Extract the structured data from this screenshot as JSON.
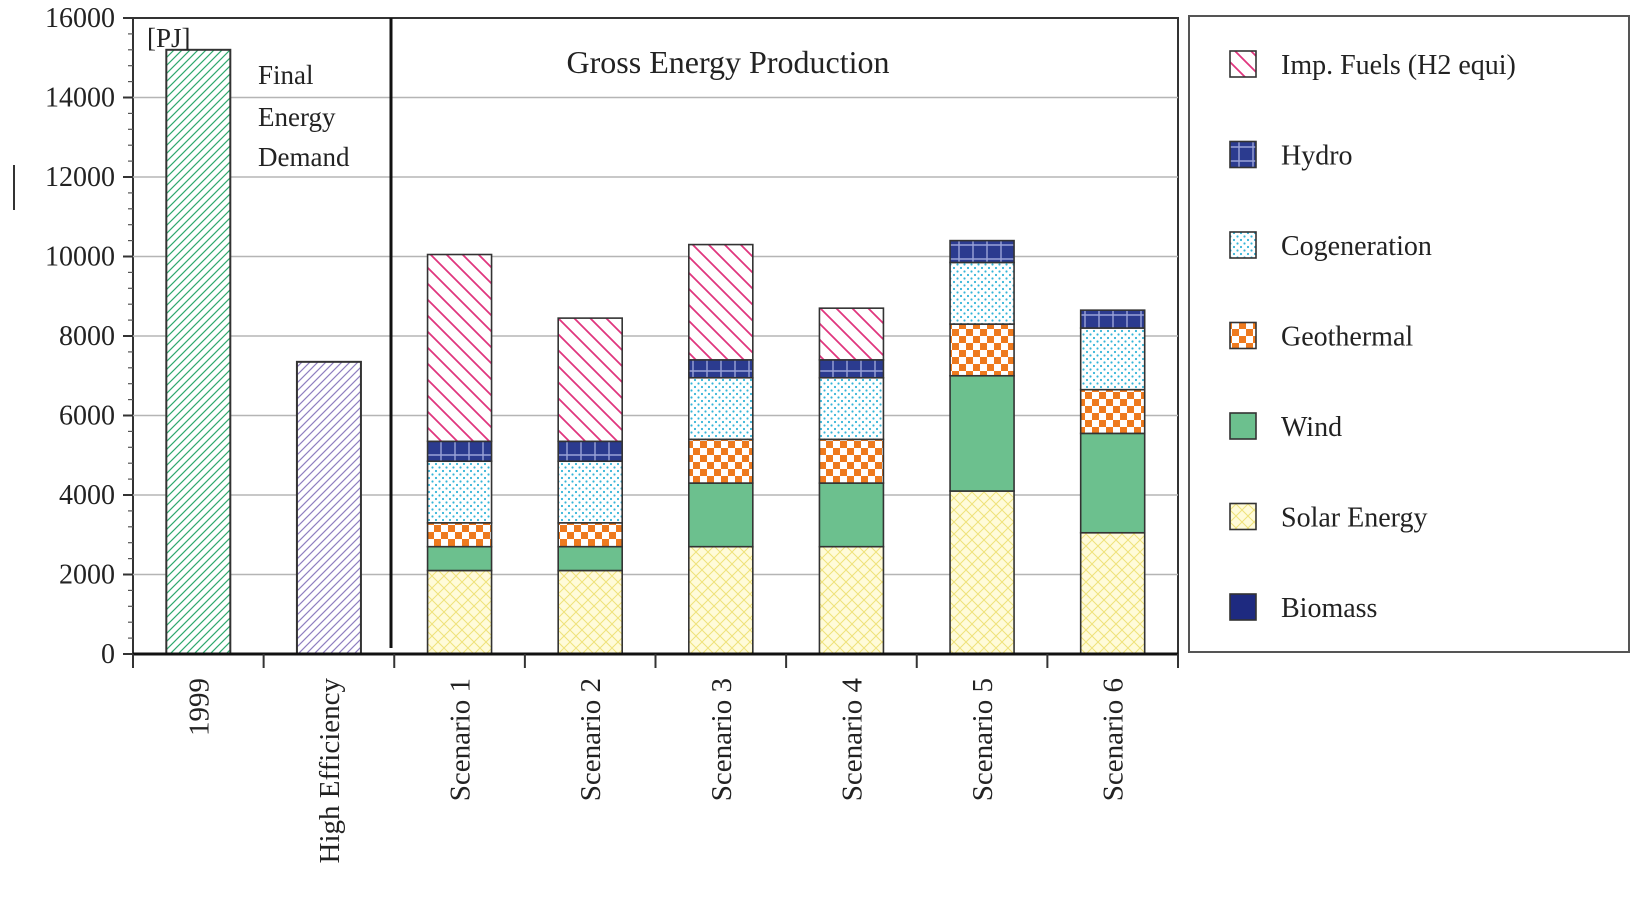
{
  "chart_data": {
    "type": "bar",
    "stacked": true,
    "unit": "[PJ]",
    "title": "Gross Energy Production",
    "annotation": [
      "Final",
      "Energy",
      "Demand"
    ],
    "ylim": [
      0,
      16000
    ],
    "yticks": [
      0,
      2000,
      4000,
      6000,
      8000,
      10000,
      12000,
      14000,
      16000
    ],
    "grid": true,
    "legend_position": "right",
    "categories": [
      "1999",
      "High Efficiency",
      "Scenario 1",
      "Scenario 2",
      "Scenario 3",
      "Scenario 4",
      "Scenario 5",
      "Scenario 6"
    ],
    "demand": [
      {
        "category": "1999",
        "value": 15200,
        "color": "#2fa86e"
      },
      {
        "category": "High Efficiency",
        "value": 7350,
        "color": "#8f7fc0"
      }
    ],
    "series": [
      {
        "name": "Biomass",
        "values": [
          0,
          0,
          0,
          0,
          0,
          0,
          0,
          0
        ],
        "color": "#1e2a80",
        "pattern": "solid"
      },
      {
        "name": "Solar Energy",
        "values": [
          0,
          0,
          2100,
          2100,
          2700,
          2700,
          4100,
          3050
        ],
        "color": "#f2e45a",
        "pattern": "crosshatch"
      },
      {
        "name": "Wind",
        "values": [
          0,
          0,
          600,
          600,
          1600,
          1600,
          2900,
          2500
        ],
        "color": "#6cc08e",
        "pattern": "solid"
      },
      {
        "name": "Geothermal",
        "values": [
          0,
          0,
          600,
          600,
          1100,
          1100,
          1300,
          1100
        ],
        "color": "#ee7a1e",
        "pattern": "checker"
      },
      {
        "name": "Cogeneration",
        "values": [
          0,
          0,
          1550,
          1550,
          1550,
          1550,
          1550,
          1550
        ],
        "color": "#35b5d8",
        "pattern": "dots"
      },
      {
        "name": "Hydro",
        "values": [
          0,
          0,
          500,
          500,
          450,
          450,
          550,
          450
        ],
        "color": "#2b3b8f",
        "pattern": "grid"
      },
      {
        "name": "Imp. Fuels (H2 equi)",
        "values": [
          0,
          0,
          4700,
          3100,
          2900,
          1300,
          0,
          0
        ],
        "color": "#e0367e",
        "pattern": "hatch"
      }
    ],
    "legend_order": [
      "Imp. Fuels (H2 equi)",
      "Hydro",
      "Cogeneration",
      "Geothermal",
      "Wind",
      "Solar Energy",
      "Biomass"
    ]
  }
}
